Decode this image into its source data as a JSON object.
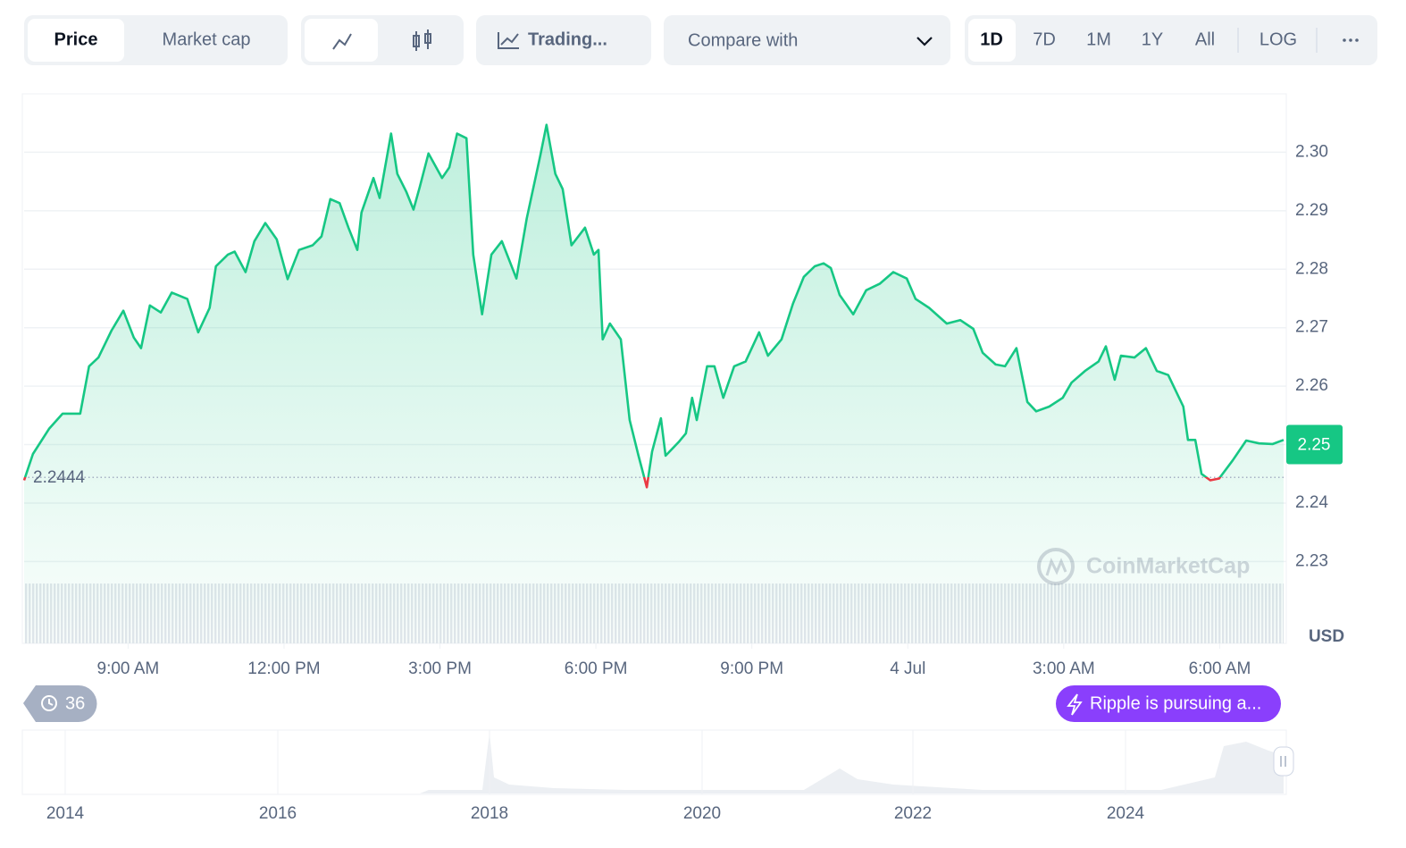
{
  "toolbar": {
    "price": "Price",
    "market_cap": "Market cap",
    "trading": "Trading...",
    "compare": "Compare with",
    "ranges": [
      "1D",
      "7D",
      "1M",
      "1Y",
      "All"
    ],
    "log": "LOG"
  },
  "chart_data": {
    "type": "line",
    "x": [
      7.0,
      7.17,
      7.48,
      7.74,
      8.08,
      8.25,
      8.43,
      8.68,
      8.91,
      9.11,
      9.25,
      9.42,
      9.63,
      9.84,
      10.14,
      10.35,
      10.57,
      10.69,
      10.92,
      11.05,
      11.26,
      11.43,
      11.64,
      11.86,
      12.07,
      12.29,
      12.55,
      12.72,
      12.89,
      13.07,
      13.24,
      13.41,
      13.49,
      13.72,
      13.84,
      14.06,
      14.18,
      14.35,
      14.49,
      14.61,
      14.78,
      15.04,
      15.18,
      15.33,
      15.51,
      15.64,
      15.81,
      15.99,
      16.19,
      16.47,
      16.67,
      16.93,
      17.05,
      17.22,
      17.36,
      17.53,
      17.79,
      17.96,
      18.05,
      18.13,
      18.27,
      18.48,
      18.65,
      18.82,
      18.98,
      19.08,
      19.25,
      19.34,
      19.59,
      19.73,
      19.85,
      19.94,
      20.14,
      20.28,
      20.45,
      20.66,
      20.88,
      21.14,
      21.31,
      21.57,
      21.79,
      22.0,
      22.21,
      22.38,
      22.52,
      22.69,
      22.95,
      23.2,
      23.46,
      23.72,
      23.98,
      24.15,
      24.41,
      24.75,
      25.01,
      25.26,
      25.44,
      25.69,
      25.87,
      26.09,
      26.3,
      26.47,
      26.72,
      26.98,
      27.15,
      27.41,
      27.67,
      27.81,
      27.98,
      28.1,
      28.36,
      28.58,
      28.79,
      29.01,
      29.3,
      29.39,
      29.53,
      29.65,
      29.82,
      29.99,
      30.25,
      30.51,
      30.76,
      31.02,
      31.23
    ],
    "series": [
      {
        "name": "Price",
        "color": "#16c784",
        "values": [
          2.2439,
          2.2484,
          2.2527,
          2.2553,
          2.2553,
          2.2634,
          2.2649,
          2.2695,
          2.2729,
          2.2683,
          2.2665,
          2.2738,
          2.2726,
          2.276,
          2.2749,
          2.2692,
          2.2734,
          2.2805,
          2.2825,
          2.283,
          2.2795,
          2.2848,
          2.2879,
          2.2851,
          2.2783,
          2.2833,
          2.2841,
          2.2856,
          2.292,
          2.2913,
          2.2871,
          2.2833,
          2.2897,
          2.2956,
          2.2922,
          2.3032,
          2.2963,
          2.2933,
          2.2902,
          2.294,
          2.2998,
          2.2956,
          2.2974,
          2.3032,
          2.3024,
          2.2825,
          2.2723,
          2.2825,
          2.2848,
          2.2784,
          2.2887,
          2.2994,
          2.3047,
          2.2963,
          2.2937,
          2.2841,
          2.2871,
          2.2825,
          2.2833,
          2.268,
          2.2707,
          2.268,
          2.2542,
          2.2481,
          2.2427,
          2.2488,
          2.2545,
          2.2481,
          2.2504,
          2.2519,
          2.258,
          2.2542,
          2.2634,
          2.2634,
          2.258,
          2.2634,
          2.2642,
          2.2692,
          2.2652,
          2.268,
          2.2741,
          2.2787,
          2.2805,
          2.281,
          2.2802,
          2.2756,
          2.2723,
          2.2764,
          2.2775,
          2.2795,
          2.2784,
          2.2749,
          2.2734,
          2.2707,
          2.2713,
          2.2698,
          2.2657,
          2.2637,
          2.2634,
          2.2665,
          2.2573,
          2.2557,
          2.2565,
          2.258,
          2.2606,
          2.2626,
          2.2642,
          2.2668,
          2.2611,
          2.2652,
          2.2649,
          2.2665,
          2.2626,
          2.2619,
          2.2565,
          2.2508,
          2.2508,
          2.245,
          2.2439,
          2.2442,
          2.2473,
          2.2507,
          2.2502,
          2.2501,
          2.2508
        ]
      }
    ],
    "below_color": "#ea3943",
    "xlim": [
      7,
      31.23
    ],
    "xticks": [
      {
        "value": 9,
        "label": "9:00 AM"
      },
      {
        "value": 12,
        "label": "12:00 PM"
      },
      {
        "value": 15,
        "label": "3:00 PM"
      },
      {
        "value": 18,
        "label": "6:00 PM"
      },
      {
        "value": 21,
        "label": "9:00 PM"
      },
      {
        "value": 24,
        "label": "4 Jul"
      },
      {
        "value": 27,
        "label": "3:00 AM"
      },
      {
        "value": 30,
        "label": "6:00 AM"
      }
    ],
    "ylim": [
      2.216,
      2.31
    ],
    "yticks": [
      2.23,
      2.24,
      2.25,
      2.26,
      2.27,
      2.28,
      2.29,
      {
        "value": 2.3,
        "label": "2.30"
      }
    ],
    "y_unit": "USD",
    "open_price": 2.2444,
    "current_price": 2.25,
    "grid": true,
    "watermark": "CoinMarketCap"
  },
  "history_count": "36",
  "news": "Ripple is pursuing a...",
  "navigator": {
    "xticks": [
      2014,
      2016,
      2018,
      2020,
      2022,
      2024
    ]
  }
}
